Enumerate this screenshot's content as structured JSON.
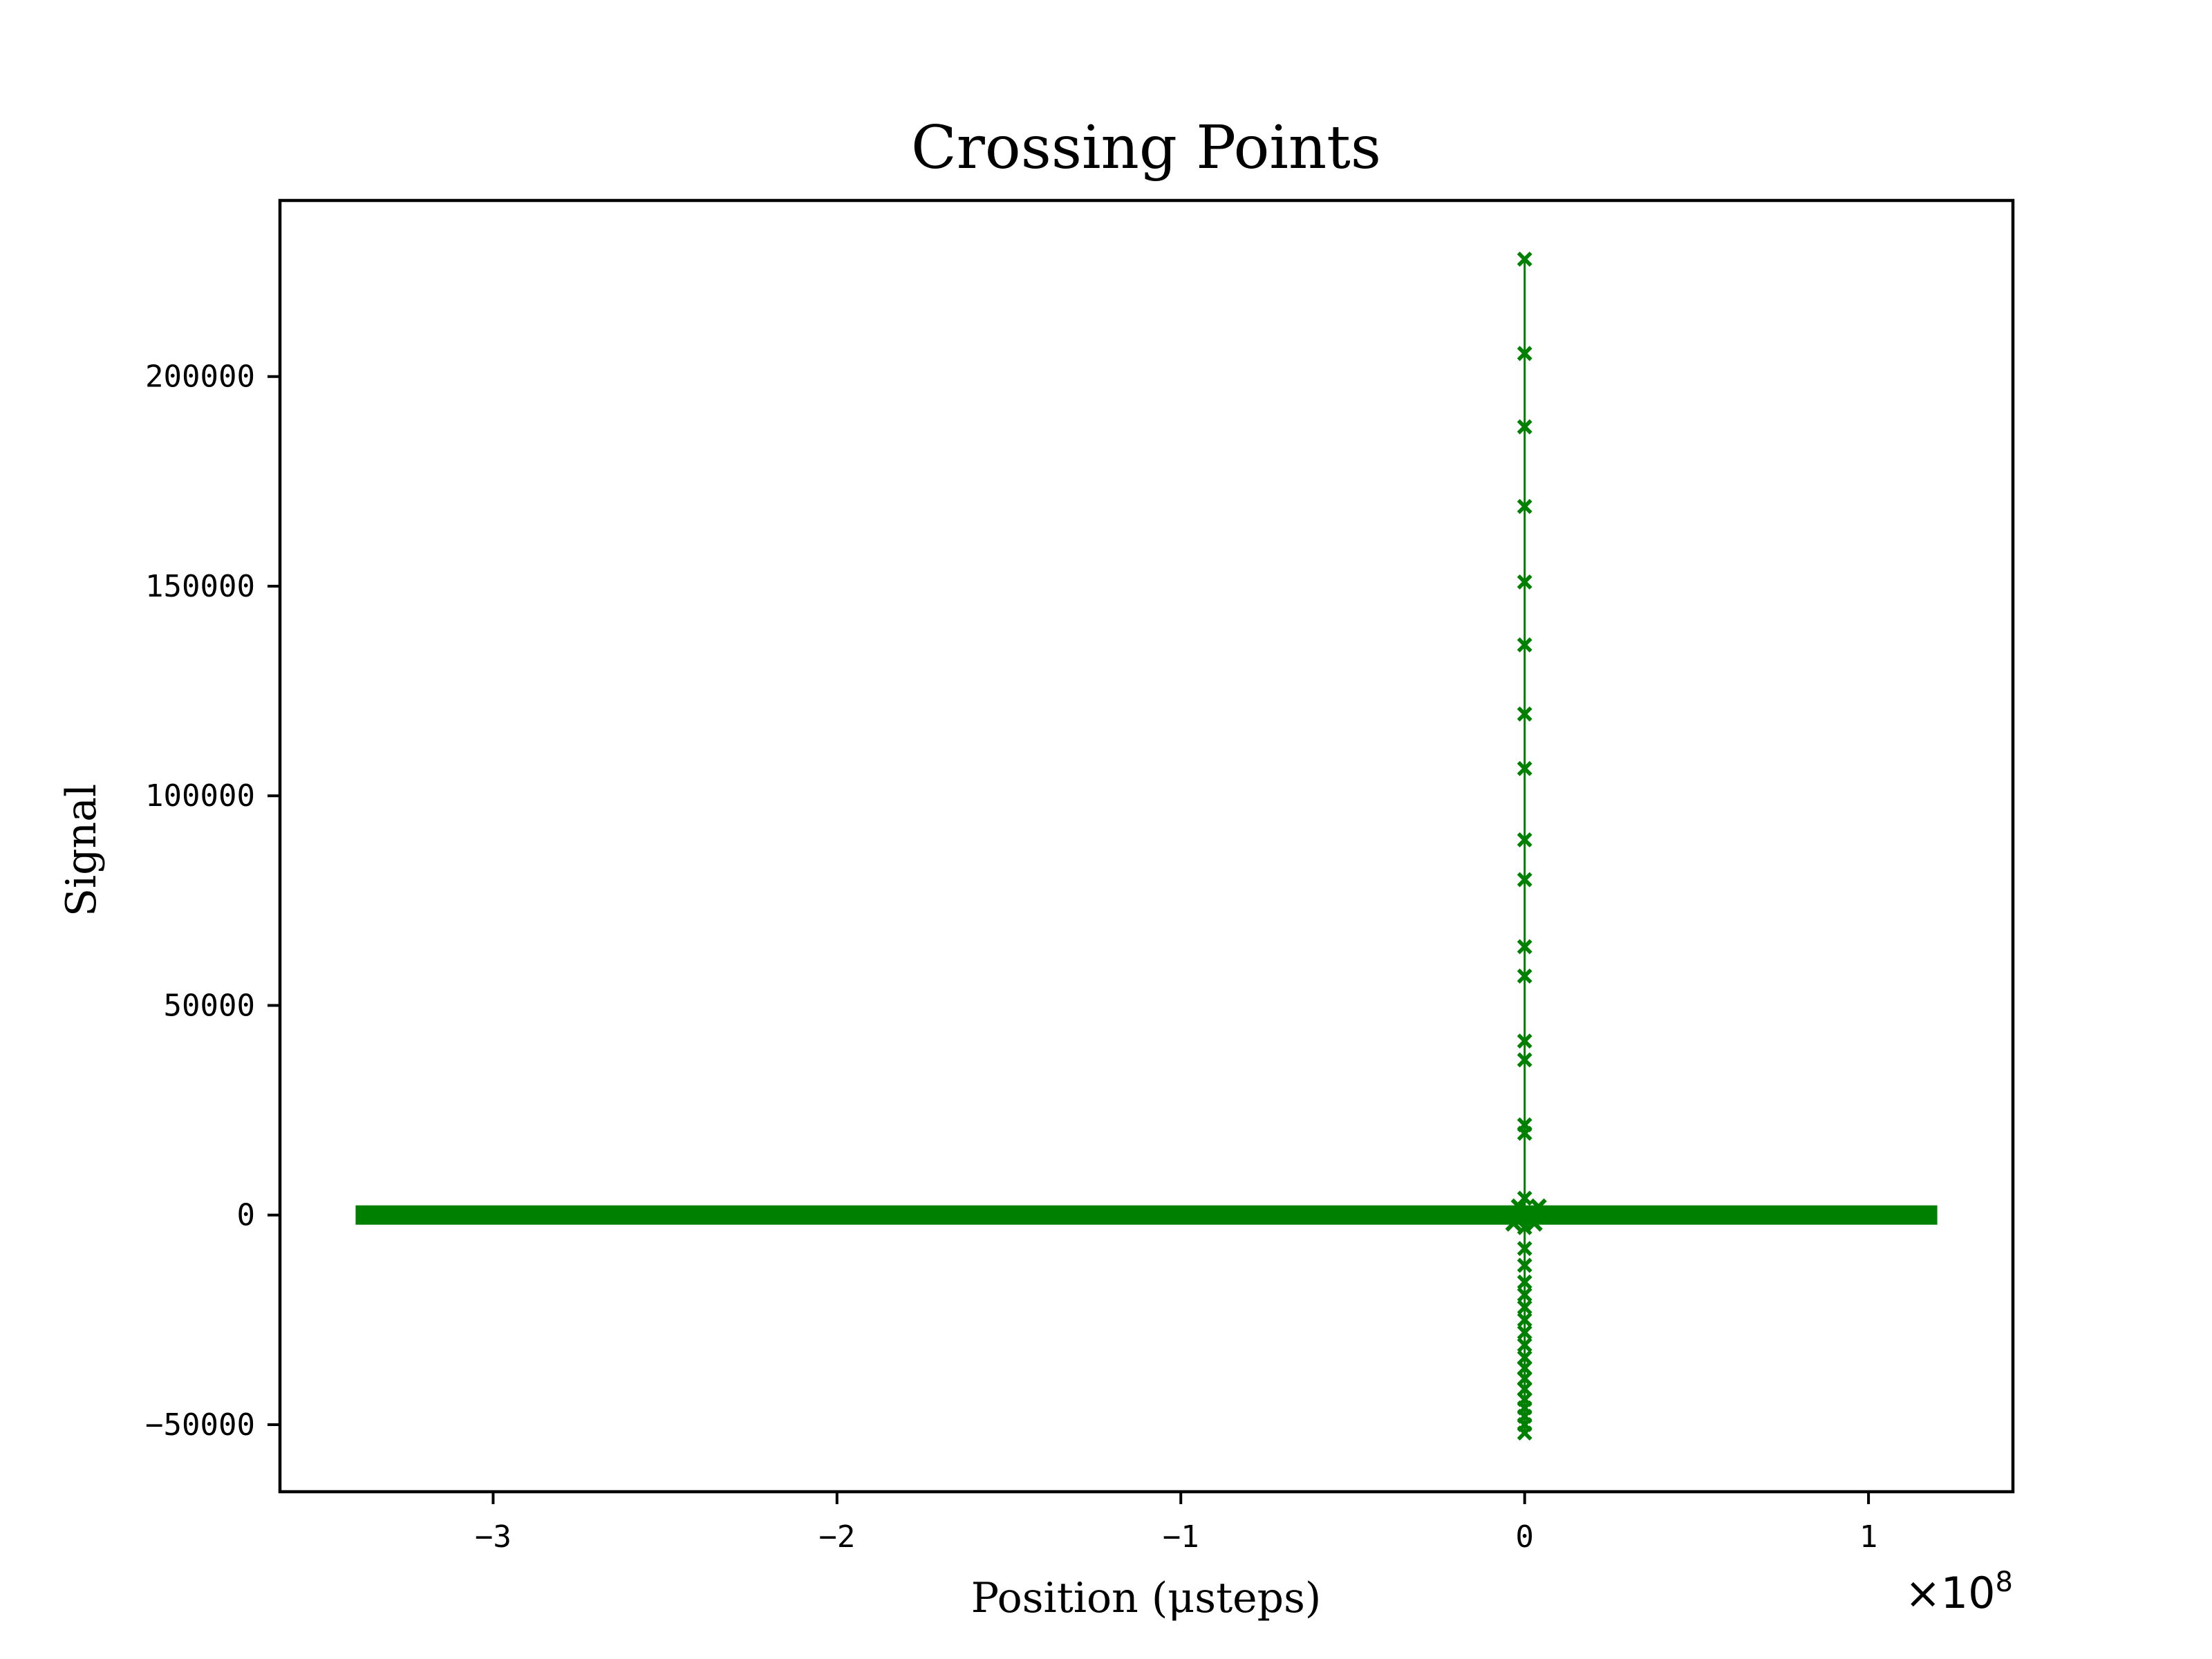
{
  "chart_data": {
    "type": "line",
    "title": "Crossing Points",
    "xlabel": "Position (μsteps)",
    "ylabel": "Signal",
    "x_offset_text": "×10",
    "x_offset_exponent": "8",
    "xlim": [
      -362000000.0,
      142000000.0
    ],
    "ylim": [
      -66000,
      242000
    ],
    "xticks": [
      -300000000.0,
      -200000000.0,
      -100000000.0,
      0,
      100000000.0
    ],
    "xtick_labels": [
      "−3",
      "−2",
      "−1",
      "0",
      "1"
    ],
    "yticks": [
      -50000,
      0,
      50000,
      100000,
      150000,
      200000
    ],
    "ytick_labels": [
      "−50000",
      "0",
      "50000",
      "100000",
      "150000",
      "200000"
    ],
    "grid": false,
    "marker": "x",
    "color": "#008000",
    "series": [
      {
        "flat_range": [
          -340000000.0,
          120000000.0
        ],
        "flat_value": 0,
        "spike_points": [
          {
            "x": 0,
            "y": 228000
          },
          {
            "x": 0,
            "y": 205500
          },
          {
            "x": 0,
            "y": 188000
          },
          {
            "x": 0,
            "y": 169000
          },
          {
            "x": 0,
            "y": 151000
          },
          {
            "x": 0,
            "y": 136000
          },
          {
            "x": 0,
            "y": 119500
          },
          {
            "x": 0,
            "y": 106500
          },
          {
            "x": 0,
            "y": 89500
          },
          {
            "x": 0,
            "y": 80000
          },
          {
            "x": 0,
            "y": 64000
          },
          {
            "x": 0,
            "y": 57000
          },
          {
            "x": 0,
            "y": 41500
          },
          {
            "x": 0,
            "y": 37000
          },
          {
            "x": 0,
            "y": 21500
          },
          {
            "x": 0,
            "y": 19500
          },
          {
            "x": 0,
            "y": 4000
          },
          {
            "x": 0,
            "y": -3000
          },
          {
            "x": 0,
            "y": -8000
          },
          {
            "x": 0,
            "y": -12000
          },
          {
            "x": 0,
            "y": -16000
          },
          {
            "x": 0,
            "y": -19000
          },
          {
            "x": 0,
            "y": -22000
          },
          {
            "x": 0,
            "y": -25000
          },
          {
            "x": 0,
            "y": -28000
          },
          {
            "x": 0,
            "y": -31000
          },
          {
            "x": 0,
            "y": -34000
          },
          {
            "x": 0,
            "y": -36500
          },
          {
            "x": 0,
            "y": -39000
          },
          {
            "x": 0,
            "y": -41500
          },
          {
            "x": 0,
            "y": -44000
          },
          {
            "x": 0,
            "y": -46000
          },
          {
            "x": 0,
            "y": -48000
          },
          {
            "x": 0,
            "y": -50000
          },
          {
            "x": 0,
            "y": -52000
          }
        ]
      }
    ]
  }
}
